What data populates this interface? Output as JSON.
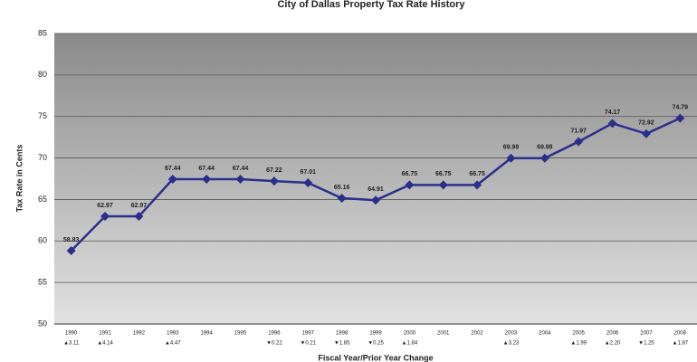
{
  "chart_data": {
    "type": "line",
    "title": "City of Dallas Property Tax Rate History",
    "y_label": "Tax Rate in Cents",
    "x_label": "Fiscal Year/Prior Year Change",
    "categories": [
      "1990",
      "1991",
      "1992",
      "1993",
      "1994",
      "1995",
      "1996",
      "1997",
      "1998",
      "1999",
      "2000",
      "2001",
      "2002",
      "2003",
      "2004",
      "2005",
      "2006",
      "2007",
      "2008"
    ],
    "change_labels": [
      "▲3.11",
      "▲4.14",
      null,
      "▲4.47",
      null,
      null,
      "▼0.22",
      "▼0.21",
      "▼1.85",
      "▼0.25",
      "▲1.84",
      null,
      null,
      "▲3.23",
      null,
      "▲1.99",
      "▲2.20",
      "▼1.25",
      "▲1.87"
    ],
    "values": [
      58.83,
      62.97,
      62.97,
      67.44,
      67.44,
      67.44,
      67.22,
      67.01,
      65.16,
      64.91,
      66.75,
      66.75,
      66.75,
      69.98,
      69.98,
      71.97,
      74.17,
      72.92,
      74.79
    ],
    "color": "#2a2f8c",
    "ylim": [
      50,
      85
    ],
    "yticks": [
      50,
      55,
      60,
      65,
      70,
      75,
      80,
      85
    ],
    "grid": true
  }
}
